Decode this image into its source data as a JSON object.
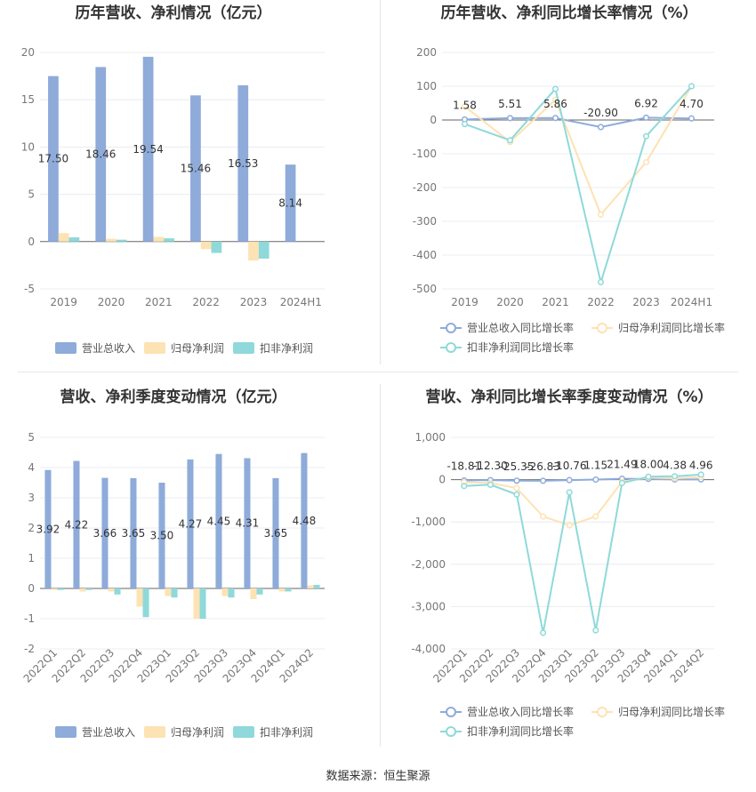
{
  "source_label": "数据来源：恒生聚源",
  "colors": {
    "revenue": "#8eabd9",
    "net_profit": "#fde2b3",
    "deducted": "#8fd9da",
    "line_revenue": "#8eabd9",
    "line_net": "#fde2b3",
    "line_deducted": "#8fd9da"
  },
  "chart_data": [
    {
      "type": "bar",
      "title": "历年营收、净利情况（亿元）",
      "categories": [
        "2019",
        "2020",
        "2021",
        "2022",
        "2023",
        "2024H1"
      ],
      "series": [
        {
          "name": "营业总收入",
          "values": [
            17.5,
            18.46,
            19.54,
            15.46,
            16.53,
            8.14
          ],
          "labels": [
            "17.50",
            "18.46",
            "19.54",
            "15.46",
            "16.53",
            "8.14"
          ]
        },
        {
          "name": "归母净利润",
          "values": [
            0.9,
            0.3,
            0.5,
            -0.8,
            -2.0,
            0
          ]
        },
        {
          "name": "扣非净利润",
          "values": [
            0.45,
            0.2,
            0.35,
            -1.2,
            -1.8,
            0
          ]
        }
      ],
      "ylim": [
        -5,
        20
      ],
      "yticks": [
        20,
        15,
        10,
        5,
        0,
        -5
      ],
      "ytick_labels": [
        "20",
        "15",
        "10",
        "5",
        "0",
        "-5"
      ],
      "legend_position": "bottom",
      "grid": true
    },
    {
      "type": "line",
      "title": "历年营收、净利同比增长率情况（%）",
      "categories": [
        "2019",
        "2020",
        "2021",
        "2022",
        "2023",
        "2024H1"
      ],
      "series": [
        {
          "name": "营业总收入同比增长率",
          "values": [
            1.58,
            5.51,
            5.86,
            -20.9,
            6.92,
            4.7
          ],
          "labels": [
            "1.58",
            "5.51",
            "5.86",
            "-20.90",
            "6.92",
            "4.70"
          ]
        },
        {
          "name": "归母净利润同比增长率",
          "values": [
            40,
            -65,
            60,
            -280,
            -125,
            100
          ]
        },
        {
          "name": "扣非净利润同比增长率",
          "values": [
            -12,
            -60,
            92,
            -480,
            -48,
            100
          ]
        }
      ],
      "ylim": [
        -500,
        200
      ],
      "yticks": [
        200,
        100,
        0,
        -100,
        -200,
        -300,
        -400,
        -500
      ],
      "ytick_labels": [
        "200",
        "100",
        "0",
        "-100",
        "-200",
        "-300",
        "-400",
        "-500"
      ],
      "legend_position": "bottom",
      "grid": true
    },
    {
      "type": "bar",
      "title": "营收、净利季度变动情况（亿元）",
      "categories": [
        "2022Q1",
        "2022Q2",
        "2022Q3",
        "2022Q4",
        "2023Q1",
        "2023Q2",
        "2023Q3",
        "2023Q4",
        "2024Q1",
        "2024Q2"
      ],
      "series": [
        {
          "name": "营业总收入",
          "values": [
            3.92,
            4.22,
            3.66,
            3.65,
            3.5,
            4.27,
            4.45,
            4.31,
            3.65,
            4.48
          ],
          "labels": [
            "3.92",
            "4.22",
            "3.66",
            "3.65",
            "3.50",
            "4.27",
            "4.45",
            "4.31",
            "3.65",
            "4.48"
          ]
        },
        {
          "name": "归母净利润",
          "values": [
            -0.05,
            -0.1,
            -0.1,
            -0.6,
            -0.25,
            -1.0,
            -0.25,
            -0.35,
            -0.1,
            0.1
          ]
        },
        {
          "name": "扣非净利润",
          "values": [
            -0.05,
            -0.05,
            -0.2,
            -0.95,
            -0.3,
            -1.0,
            -0.3,
            -0.2,
            -0.1,
            0.12
          ]
        }
      ],
      "ylim": [
        -2,
        5
      ],
      "yticks": [
        5,
        4,
        3,
        2,
        1,
        0,
        -1,
        -2
      ],
      "ytick_labels": [
        "5",
        "4",
        "3",
        "2",
        "1",
        "0",
        "-1",
        "-2"
      ],
      "legend_position": "bottom",
      "grid": true
    },
    {
      "type": "line",
      "title": "营收、净利同比增长率季度变动情况（%）",
      "categories": [
        "2022Q1",
        "2022Q2",
        "2022Q3",
        "2022Q4",
        "2023Q1",
        "2023Q2",
        "2023Q3",
        "2023Q4",
        "2024Q1",
        "2024Q2"
      ],
      "series": [
        {
          "name": "营业总收入同比增长率",
          "values": [
            -18.81,
            -12.3,
            -25.35,
            -26.83,
            -10.76,
            1.15,
            21.49,
            18.0,
            4.38,
            4.96
          ],
          "labels": [
            "-18.81",
            "-12.30",
            "-25.35",
            "-26.83",
            "-10.76",
            "1.15",
            "21.49",
            "18.00",
            "4.38",
            "4.96"
          ]
        },
        {
          "name": "归母净利润同比增长率",
          "values": [
            -60,
            -80,
            -200,
            -870,
            -1080,
            -870,
            -50,
            50,
            30,
            60
          ]
        },
        {
          "name": "扣非净利润同比增长率",
          "values": [
            -150,
            -120,
            -350,
            -3620,
            -300,
            -3560,
            -80,
            70,
            80,
            120
          ]
        }
      ],
      "ylim": [
        -4000,
        1000
      ],
      "yticks": [
        1000,
        0,
        -1000,
        -2000,
        -3000,
        -4000
      ],
      "ytick_labels": [
        "1,000",
        "0",
        "-1,000",
        "-2,000",
        "-3,000",
        "-4,000"
      ],
      "legend_position": "bottom",
      "grid": true
    }
  ]
}
